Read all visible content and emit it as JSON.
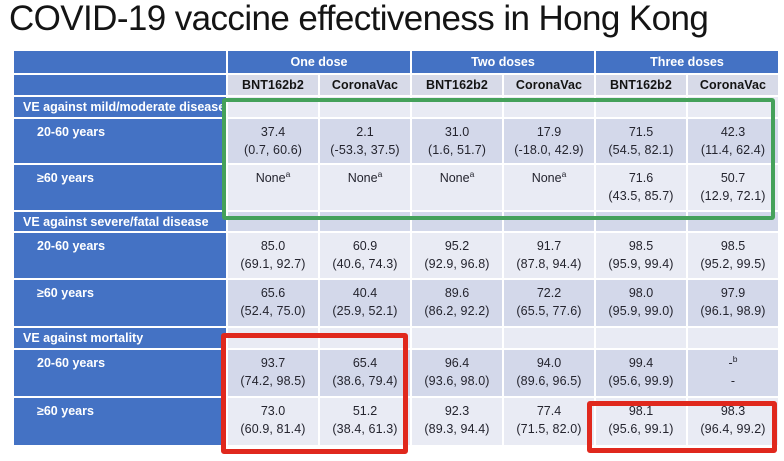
{
  "title": "COVID-19 vaccine effectiveness in Hong Kong",
  "colors": {
    "header_blue": "#4472c4",
    "band_light": "#e9ebf4",
    "band_dark": "#d3d8ea",
    "subheader_bg": "#d7dae8",
    "highlight_green": "#45a15a",
    "highlight_red": "#e0281d"
  },
  "table": {
    "dose_groups": [
      "One dose",
      "Two doses",
      "Three doses"
    ],
    "vaccine_columns": [
      "BNT162b2",
      "CoronaVac",
      "BNT162b2",
      "CoronaVac",
      "BNT162b2",
      "CoronaVac"
    ],
    "sections": [
      {
        "label": "VE against mild/moderate disease",
        "rows": [
          {
            "label": "20-60 years",
            "cells": [
              {
                "v": "37.4",
                "ci": "(0.7, 60.6)"
              },
              {
                "v": "2.1",
                "ci": "(-53.3, 37.5)"
              },
              {
                "v": "31.0",
                "ci": "(1.6, 51.7)"
              },
              {
                "v": "17.9",
                "ci": "(-18.0, 42.9)"
              },
              {
                "v": "71.5",
                "ci": "(54.5, 82.1)"
              },
              {
                "v": "42.3",
                "ci": "(11.4, 62.4)"
              }
            ]
          },
          {
            "label": "≥60 years",
            "cells": [
              {
                "v": "None",
                "sup": "a",
                "ci": ""
              },
              {
                "v": "None",
                "sup": "a",
                "ci": ""
              },
              {
                "v": "None",
                "sup": "a",
                "ci": ""
              },
              {
                "v": "None",
                "sup": "a",
                "ci": ""
              },
              {
                "v": "71.6",
                "ci": "(43.5, 85.7)"
              },
              {
                "v": "50.7",
                "ci": "(12.9, 72.1)"
              }
            ]
          }
        ]
      },
      {
        "label": "VE against severe/fatal disease",
        "rows": [
          {
            "label": "20-60 years",
            "cells": [
              {
                "v": "85.0",
                "ci": "(69.1, 92.7)"
              },
              {
                "v": "60.9",
                "ci": "(40.6, 74.3)"
              },
              {
                "v": "95.2",
                "ci": "(92.9, 96.8)"
              },
              {
                "v": "91.7",
                "ci": "(87.8, 94.4)"
              },
              {
                "v": "98.5",
                "ci": "(95.9, 99.4)"
              },
              {
                "v": "98.5",
                "ci": "(95.2, 99.5)"
              }
            ]
          },
          {
            "label": "≥60 years",
            "cells": [
              {
                "v": "65.6",
                "ci": "(52.4, 75.0)"
              },
              {
                "v": "40.4",
                "ci": "(25.9, 52.1)"
              },
              {
                "v": "89.6",
                "ci": "(86.2, 92.2)"
              },
              {
                "v": "72.2",
                "ci": "(65.5, 77.6)"
              },
              {
                "v": "98.0",
                "ci": "(95.9, 99.0)"
              },
              {
                "v": "97.9",
                "ci": "(96.1, 98.9)"
              }
            ]
          }
        ]
      },
      {
        "label": "VE against mortality",
        "rows": [
          {
            "label": "20-60 years",
            "cells": [
              {
                "v": "93.7",
                "ci": "(74.2, 98.5)"
              },
              {
                "v": "65.4",
                "ci": "(38.6, 79.4)"
              },
              {
                "v": "96.4",
                "ci": "(93.6, 98.0)"
              },
              {
                "v": "94.0",
                "ci": "(89.6, 96.5)"
              },
              {
                "v": "99.4",
                "ci": "(95.6, 99.9)"
              },
              {
                "v": "-",
                "sup": "b",
                "ci": "-"
              }
            ]
          },
          {
            "label": "≥60 years",
            "cells": [
              {
                "v": "73.0",
                "ci": "(60.9, 81.4)"
              },
              {
                "v": "51.2",
                "ci": "(38.4, 61.3)"
              },
              {
                "v": "92.3",
                "ci": "(89.3, 94.4)"
              },
              {
                "v": "77.4",
                "ci": "(71.5, 82.0)"
              },
              {
                "v": "98.1",
                "ci": "(95.6, 99.1)"
              },
              {
                "v": "98.3",
                "ci": "(96.4, 99.2)"
              }
            ]
          }
        ]
      }
    ]
  }
}
